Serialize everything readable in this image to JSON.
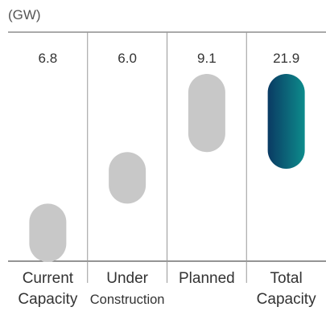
{
  "chart_data": {
    "type": "bar",
    "subtype": "waterfall",
    "unit_label": "(GW)",
    "categories": [
      [
        "Current",
        "Capacity"
      ],
      [
        "Under",
        "Construction"
      ],
      [
        "Planned"
      ],
      [
        "Total",
        "Capacity"
      ]
    ],
    "values": [
      6.8,
      6.0,
      9.1,
      21.9
    ],
    "value_labels": [
      "6.8",
      "6.0",
      "9.1",
      "21.9"
    ],
    "ylim": [
      0,
      21.9
    ],
    "grid": false,
    "colors": {
      "increment": "#c8c8c8",
      "total_start": "#0a3a63",
      "total_end": "#0d8c8c",
      "axis": "#555555",
      "divider": "#999999"
    }
  }
}
